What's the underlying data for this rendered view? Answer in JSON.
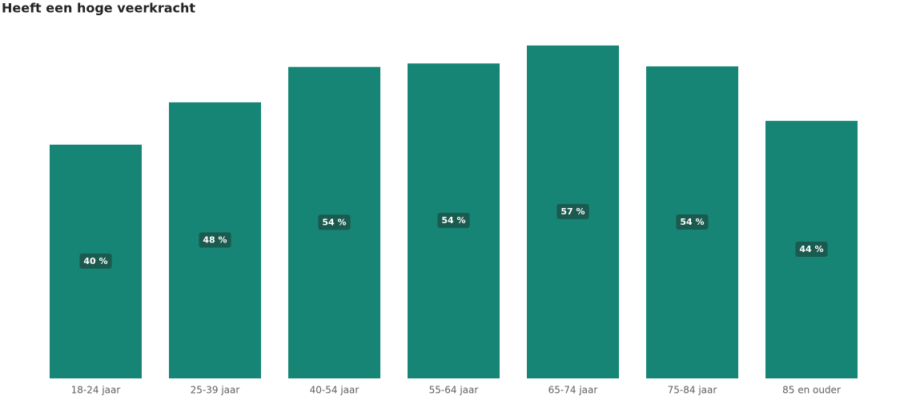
{
  "chart_data": {
    "type": "bar",
    "title": "Heeft een hoge veerkracht",
    "categories": [
      "18-24 jaar",
      "25-39 jaar",
      "40-54 jaar",
      "55-64 jaar",
      "65-74 jaar",
      "75-84 jaar",
      "85 en ouder"
    ],
    "values": [
      40.3,
      47.6,
      53.7,
      54.3,
      57.4,
      53.8,
      44.4
    ],
    "value_labels": [
      "40 %",
      "48 %",
      "54 %",
      "54 %",
      "57 %",
      "54 %",
      "44 %"
    ],
    "color": "#168575",
    "ylim": [
      0,
      60
    ],
    "grid": false
  }
}
